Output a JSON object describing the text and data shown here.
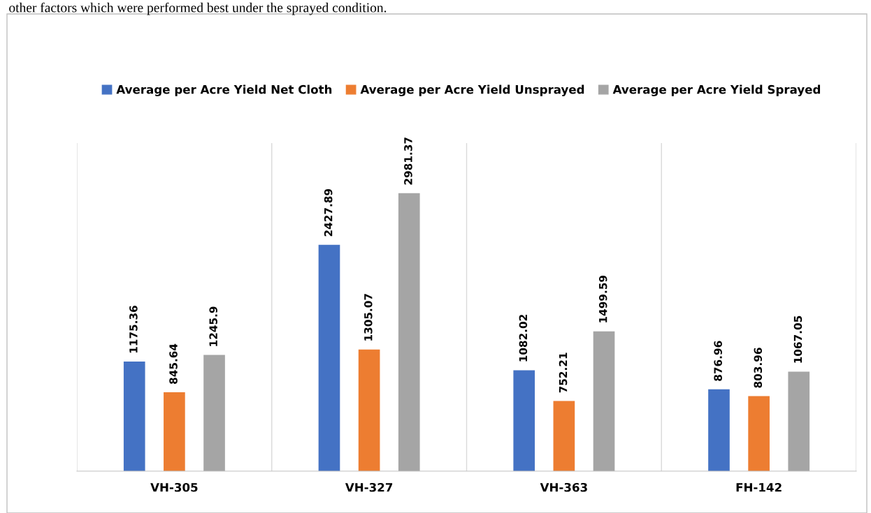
{
  "chart_data": {
    "type": "bar",
    "annotations": [
      "other factors which were performed best under the sprayed condition."
    ],
    "categories": [
      "VH-305",
      "VH-327",
      "VH-363",
      "FH-142"
    ],
    "series": [
      {
        "name": "Average per Acre Yield Net Cloth",
        "color": "#4472c4",
        "values": [
          1175.36,
          2427.89,
          1082.02,
          876.96
        ]
      },
      {
        "name": "Average per Acre Yield Unsprayed",
        "color": "#ed7d31",
        "values": [
          845.64,
          1305.07,
          752.21,
          803.96
        ]
      },
      {
        "name": "Average per Acre Yield Sprayed",
        "color": "#a5a5a5",
        "values": [
          1245.9,
          2981.37,
          1499.59,
          1067.05
        ]
      }
    ],
    "data_labels": true,
    "grid": "x",
    "legend": "top",
    "tick_labels": "x"
  }
}
